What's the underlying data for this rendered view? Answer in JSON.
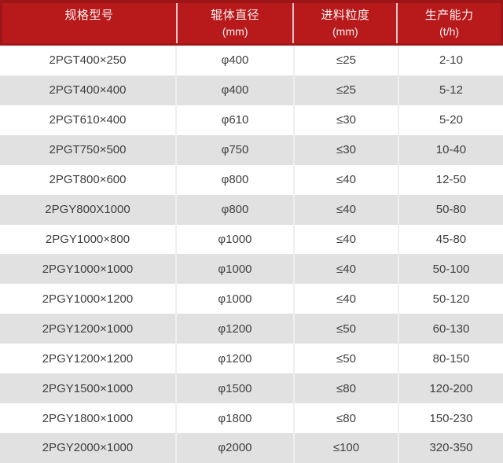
{
  "chart_data": {
    "type": "table",
    "columns": [
      {
        "label": "规格型号",
        "unit": ""
      },
      {
        "label": "辊体直径",
        "unit": "(mm)"
      },
      {
        "label": "进料粒度",
        "unit": "(mm)"
      },
      {
        "label": "生产能力",
        "unit": "(t/h)"
      }
    ],
    "rows": [
      [
        "2PGT400×250",
        "φ400",
        "≤25",
        "2-10"
      ],
      [
        "2PGT400×400",
        "φ400",
        "≤25",
        "5-12"
      ],
      [
        "2PGT610×400",
        "φ610",
        "≤30",
        "5-20"
      ],
      [
        "2PGT750×500",
        "φ750",
        "≤30",
        "10-40"
      ],
      [
        "2PGT800×600",
        "φ800",
        "≤40",
        "12-50"
      ],
      [
        "2PGY800X1000",
        "φ800",
        "≤40",
        "50-80"
      ],
      [
        "2PGY1000×800",
        "φ1000",
        "≤40",
        "45-80"
      ],
      [
        "2PGY1000×1000",
        "φ1000",
        "≤40",
        "50-100"
      ],
      [
        "2PGY1000×1200",
        "φ1000",
        "≤40",
        "50-120"
      ],
      [
        "2PGY1200×1000",
        "φ1200",
        "≤50",
        "60-130"
      ],
      [
        "2PGY1200×1200",
        "φ1200",
        "≤50",
        "80-150"
      ],
      [
        "2PGY1500×1000",
        "φ1500",
        "≤80",
        "120-200"
      ],
      [
        "2PGY1800×1000",
        "φ1800",
        "≤80",
        "150-230"
      ],
      [
        "2PGY2000×1000",
        "φ2000",
        "≤100",
        "320-350"
      ]
    ]
  },
  "colors": {
    "header_bg": "#b81a1c",
    "header_border": "#9c1517",
    "header_text": "#fdf3f3",
    "header_separator": "#f3dcdc",
    "row_bg": "#ffffff",
    "row_alt_bg": "#e1e1e1",
    "body_text": "#3f3f3f",
    "body_separator": "#efefef"
  }
}
